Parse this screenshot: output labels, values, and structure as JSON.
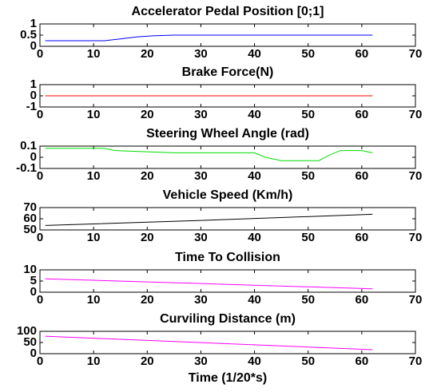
{
  "chart_data": [
    {
      "type": "line",
      "title": "Accelerator Pedal Position [0;1]",
      "x": [
        1,
        12,
        15,
        18,
        21,
        25,
        62
      ],
      "series": [
        {
          "color": "#0000ff",
          "values": [
            0.25,
            0.25,
            0.33,
            0.42,
            0.47,
            0.5,
            0.5
          ]
        }
      ],
      "xlim": [
        0,
        70
      ],
      "xticks": [
        0,
        10,
        20,
        30,
        40,
        50,
        60,
        70
      ],
      "ylim": [
        0,
        1
      ],
      "yticks": [
        0,
        0.5,
        1
      ]
    },
    {
      "type": "line",
      "title": "Brake Force(N)",
      "x": [
        1,
        62
      ],
      "series": [
        {
          "color": "#ff0000",
          "values": [
            0,
            0
          ]
        }
      ],
      "xlim": [
        0,
        70
      ],
      "xticks": [
        0,
        10,
        20,
        30,
        40,
        50,
        60,
        70
      ],
      "ylim": [
        -1,
        1
      ],
      "yticks": [
        -1,
        0,
        1
      ]
    },
    {
      "type": "line",
      "title": "Steering Wheel Angle (rad)",
      "x": [
        1,
        12,
        14,
        25,
        40,
        42,
        45,
        52,
        54,
        56,
        60,
        62
      ],
      "series": [
        {
          "color": "#00dd00",
          "values": [
            0.08,
            0.08,
            0.06,
            0.04,
            0.04,
            0.0,
            -0.03,
            -0.03,
            0.02,
            0.06,
            0.06,
            0.04
          ]
        }
      ],
      "xlim": [
        0,
        70
      ],
      "xticks": [
        0,
        10,
        20,
        30,
        40,
        50,
        60,
        70
      ],
      "ylim": [
        -0.1,
        0.1
      ],
      "yticks": [
        -0.1,
        0,
        0.1
      ]
    },
    {
      "type": "line",
      "title": "Vehicle Speed (Km/h)",
      "x": [
        1,
        30,
        62
      ],
      "series": [
        {
          "color": "#000000",
          "values": [
            54,
            58.5,
            64
          ]
        }
      ],
      "xlim": [
        0,
        70
      ],
      "xticks": [
        0,
        10,
        20,
        30,
        40,
        50,
        60,
        70
      ],
      "ylim": [
        50,
        70
      ],
      "yticks": [
        50,
        60,
        70
      ]
    },
    {
      "type": "line",
      "title": "Time To Collision",
      "x": [
        1,
        62
      ],
      "series": [
        {
          "color": "#ff00ff",
          "values": [
            6,
            1.5
          ]
        }
      ],
      "xlim": [
        0,
        70
      ],
      "xticks": [
        0,
        10,
        20,
        30,
        40,
        50,
        60,
        70
      ],
      "ylim": [
        0,
        10
      ],
      "yticks": [
        0,
        5,
        10
      ]
    },
    {
      "type": "line",
      "title": "Curviling Distance (m)",
      "x": [
        1,
        62
      ],
      "series": [
        {
          "color": "#ff00ff",
          "values": [
            78,
            18
          ]
        }
      ],
      "xlim": [
        0,
        70
      ],
      "xticks": [
        0,
        10,
        20,
        30,
        40,
        50,
        60,
        70
      ],
      "ylim": [
        0,
        100
      ],
      "yticks": [
        0,
        50,
        100
      ],
      "x_label": "Time (1/20*s)"
    }
  ]
}
